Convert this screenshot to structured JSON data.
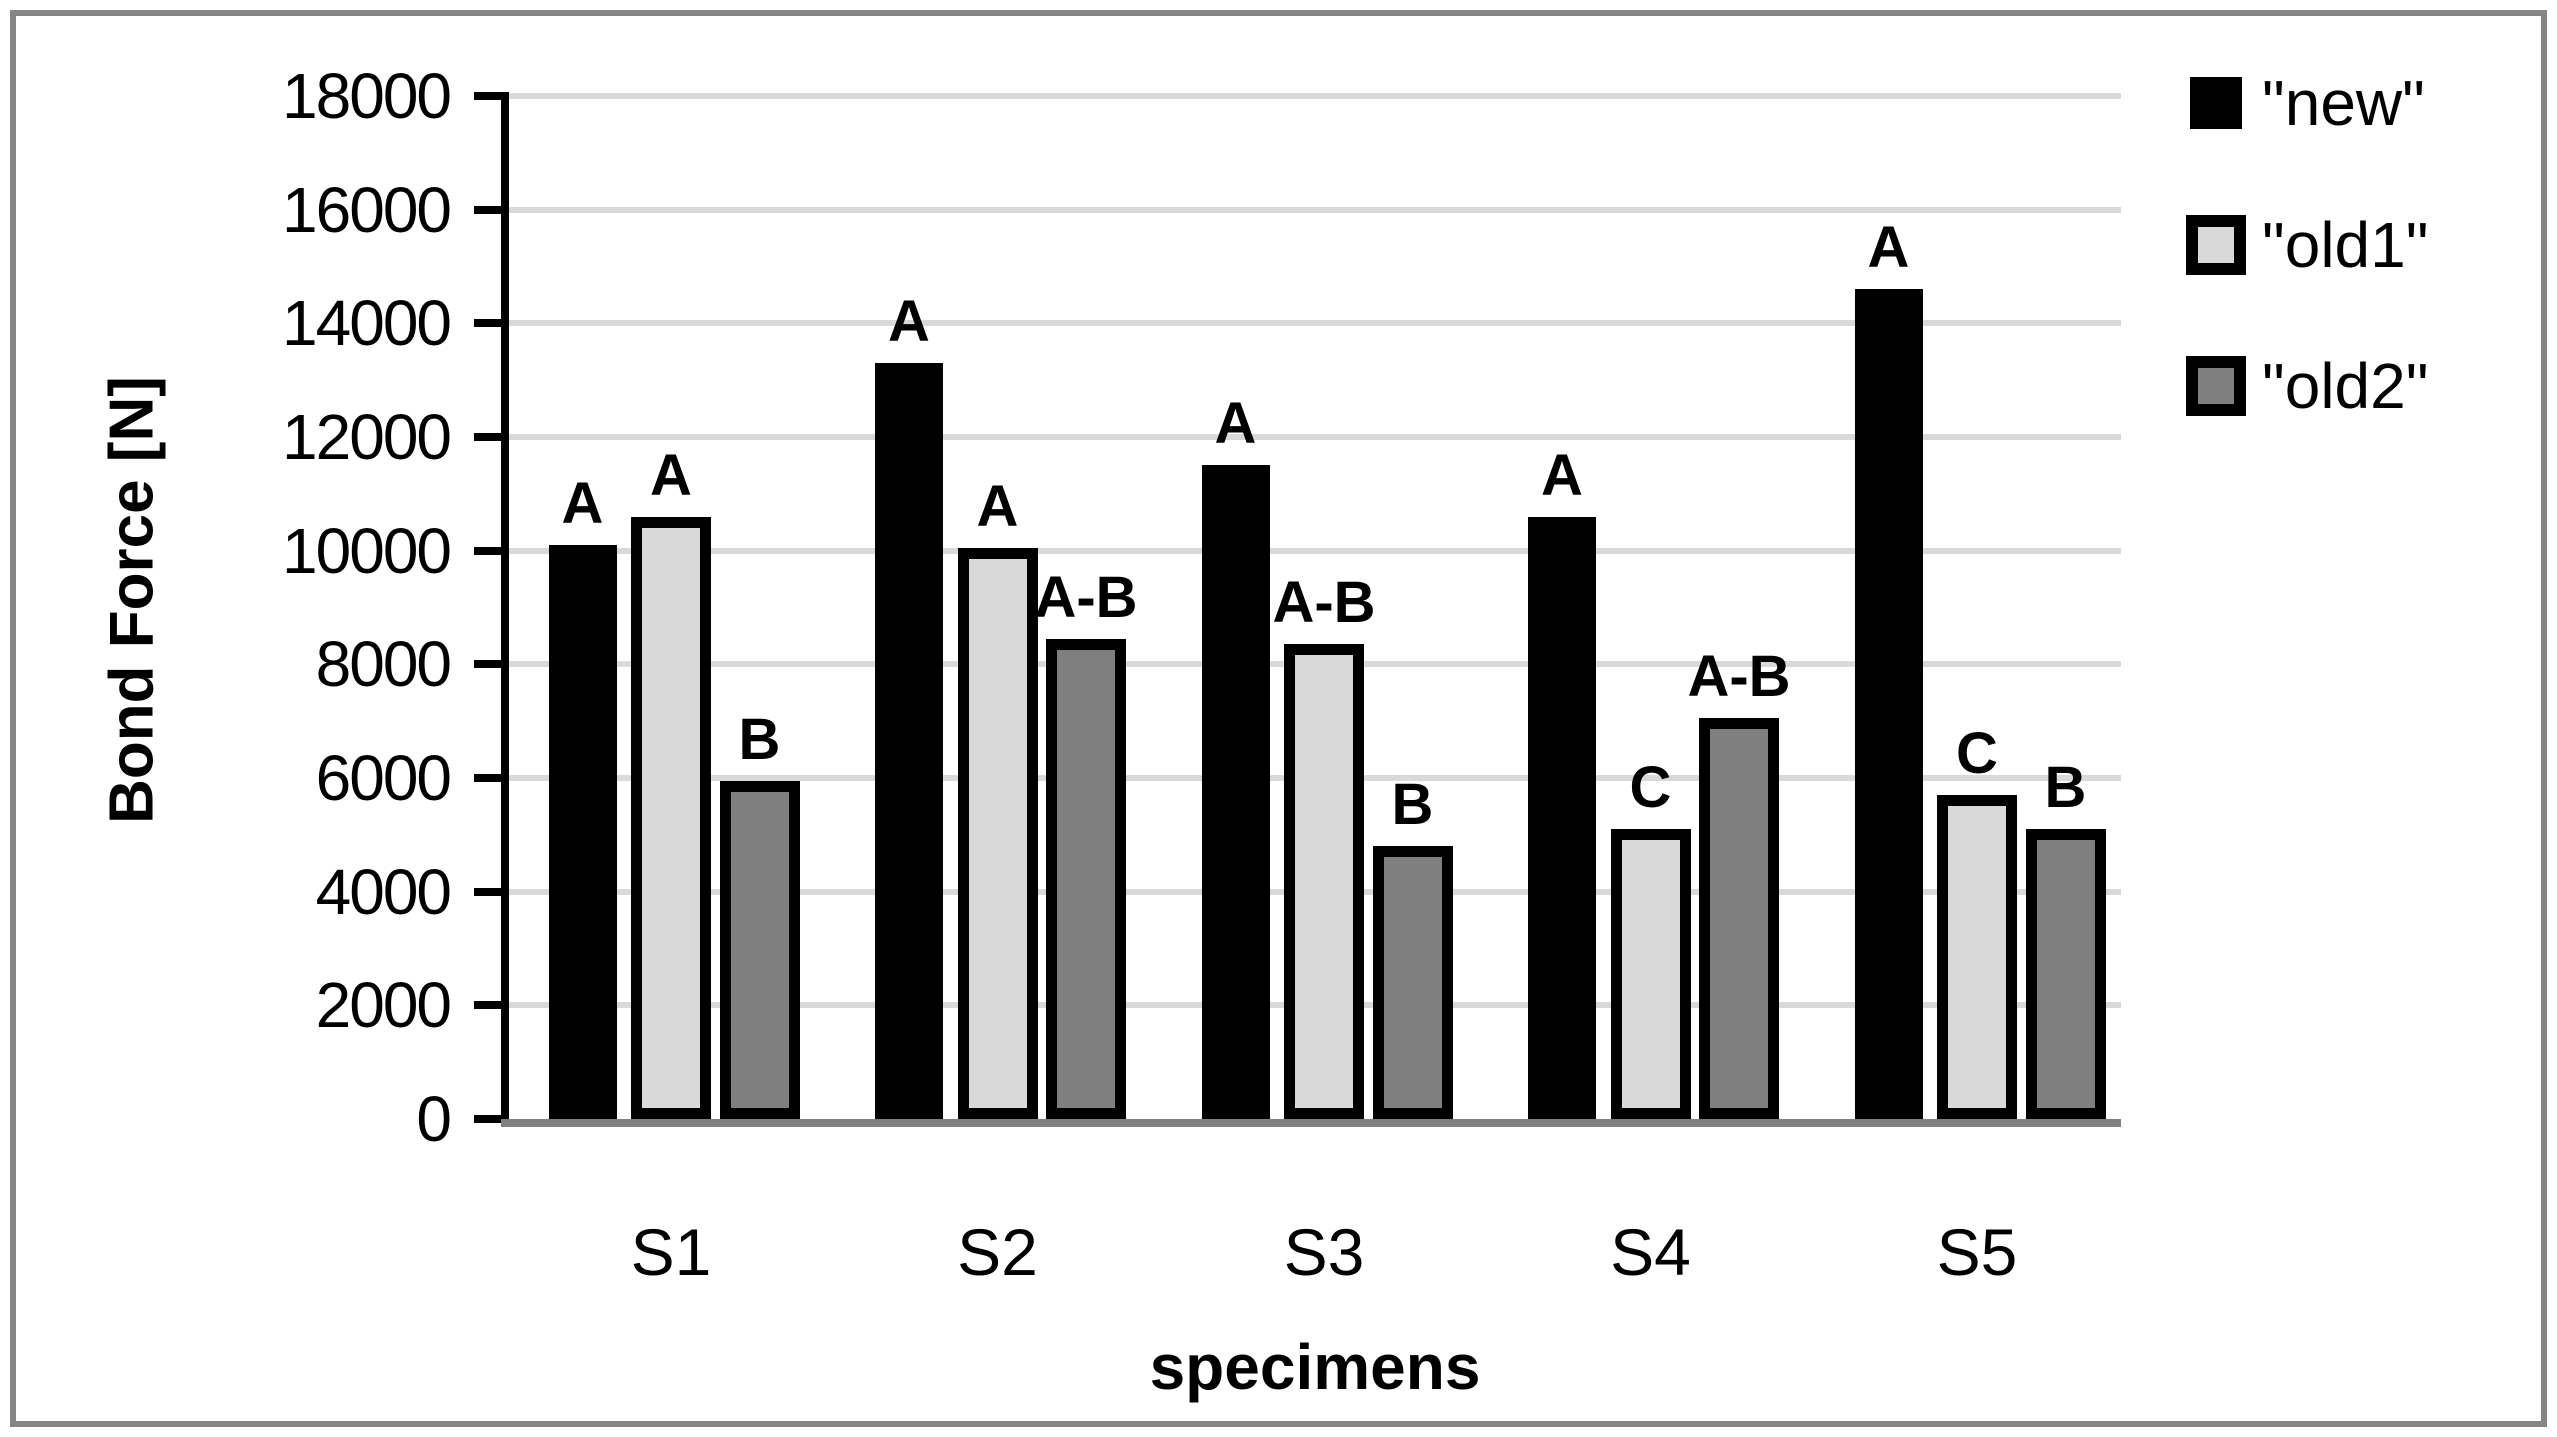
{
  "chart_data": {
    "type": "bar",
    "title": "",
    "xlabel": "specimens",
    "ylabel": "Bond Force [N]",
    "ylim": [
      0,
      18000
    ],
    "ytick_step": 2000,
    "ytick_labels": [
      "0",
      "2000",
      "4000",
      "6000",
      "8000",
      "10000",
      "12000",
      "14000",
      "16000",
      "18000"
    ],
    "grid": true,
    "legend_position": "top-right",
    "categories": [
      "S1",
      "S2",
      "S3",
      "S4",
      "S5"
    ],
    "series": [
      {
        "key": "new",
        "name": "\"new\"",
        "fill": "#000000",
        "outlined": false,
        "values": [
          10100,
          13300,
          11500,
          10600,
          14600
        ],
        "bar_labels": [
          "A",
          "A",
          "A",
          "A",
          "A"
        ]
      },
      {
        "key": "old1",
        "name": "\"old1\"",
        "fill": "#d9d9d9",
        "outlined": true,
        "values": [
          10600,
          10050,
          8350,
          5100,
          5700
        ],
        "bar_labels": [
          "A",
          "A",
          "A-B",
          "C",
          "C"
        ]
      },
      {
        "key": "old2",
        "name": "\"old2\"",
        "fill": "#7f7f7f",
        "outlined": true,
        "values": [
          5950,
          8450,
          4800,
          7050,
          5100
        ],
        "bar_labels": [
          "B",
          "A-B",
          "B",
          "A-B",
          "B"
        ]
      }
    ],
    "colors": {
      "bar_border": "#000000",
      "gridline": "#d9d9d9",
      "baseline": "#808080",
      "axis_line": "#000000",
      "frame": "#858585",
      "text": "#000000"
    }
  }
}
